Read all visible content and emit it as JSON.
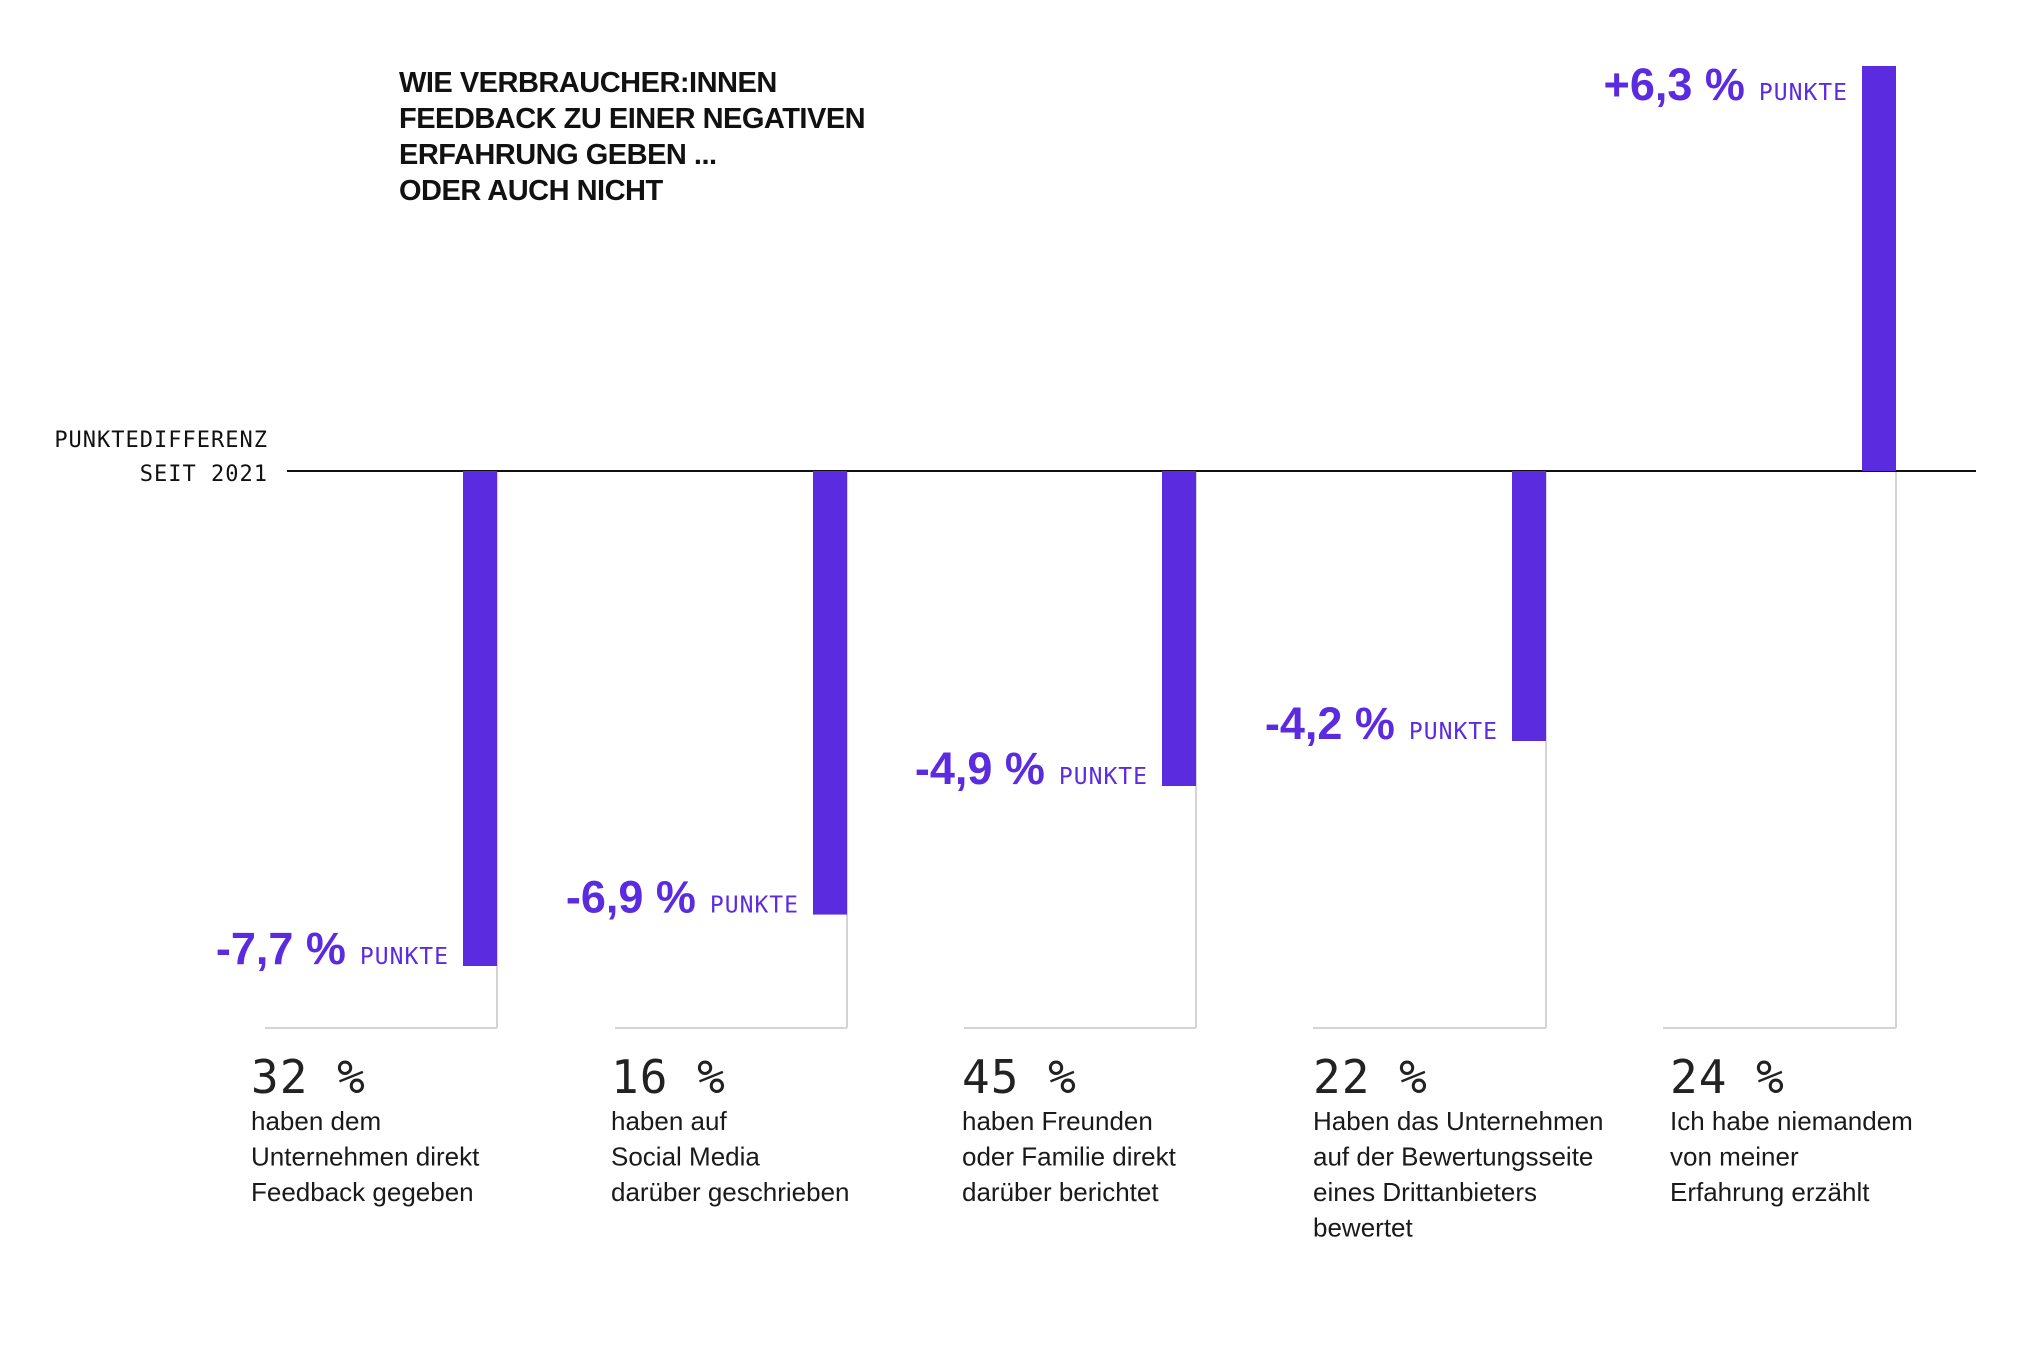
{
  "chart_data": {
    "type": "bar",
    "title_lines": [
      "WIE VERBRAUCHER:INNEN",
      "FEEDBACK ZU EINER NEGATIVEN",
      "ERFAHRUNG GEBEN ...",
      "ODER AUCH NICHT"
    ],
    "ylabel_lines": [
      "PUNKTEDIFFERENZ",
      "SEIT 2021"
    ],
    "value_unit": "PUNKTE",
    "ylim": [
      -9,
      6.3
    ],
    "grid": false,
    "colors": {
      "bar": "#5B2BE0",
      "axis": "#111111",
      "guide": "#d4d4d4"
    },
    "categories": [
      {
        "share": "32 %",
        "lines": [
          "haben dem",
          "Unternehmen direkt",
          "Feedback gegeben"
        ],
        "value": -7.7,
        "value_label": "-7,7 %"
      },
      {
        "share": "16 %",
        "lines": [
          "haben auf",
          "Social Media",
          "darüber geschrieben"
        ],
        "value": -6.9,
        "value_label": "-6,9 %"
      },
      {
        "share": "45 %",
        "lines": [
          "haben Freunden",
          "oder Familie direkt",
          "darüber berichtet"
        ],
        "value": -4.9,
        "value_label": "-4,9 %"
      },
      {
        "share": "22 %",
        "lines": [
          "Haben das Unternehmen",
          "auf der Bewertungsseite",
          "eines Drittanbieters",
          "bewertet"
        ],
        "value": -4.2,
        "value_label": "-4,2 %"
      },
      {
        "share": "24 %",
        "lines": [
          "Ich habe niemandem",
          "von meiner",
          "Erfahrung erzählt"
        ],
        "value": 6.3,
        "value_label": "+6,3 %"
      }
    ]
  }
}
